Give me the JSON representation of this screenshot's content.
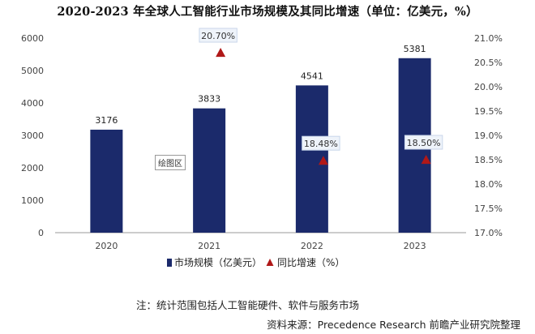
{
  "title": "2020-2023 年全球人工智能行业市场规模及其同比增速（单位：亿美元，%）",
  "plot_area_label": "绘图区",
  "note": "注：统计范围包括人工智能硬件、软件与服务市场",
  "source": "资料来源：Precedence Research 前瞻产业研究院整理",
  "colors": {
    "bar": "#1b2a6b",
    "marker": "#b01818",
    "axis": "#9a9a9a"
  },
  "chart_data": {
    "type": "bar",
    "categories": [
      "2020",
      "2021",
      "2022",
      "2023"
    ],
    "series": [
      {
        "name": "市场规模（亿美元）",
        "axis": "left",
        "type": "bar",
        "values": [
          3176,
          3833,
          4541,
          5381
        ],
        "labels": [
          "3176",
          "3833",
          "4541",
          "5381"
        ]
      },
      {
        "name": "同比增速（%）",
        "axis": "right",
        "type": "scatter",
        "marker": "triangle",
        "values": [
          null,
          20.7,
          18.48,
          18.5
        ],
        "labels": [
          null,
          "20.70%",
          "18.48%",
          "18.50%"
        ]
      }
    ],
    "left_axis": {
      "min": 0,
      "max": 6000,
      "step": 1000,
      "ticks": [
        "0",
        "1000",
        "2000",
        "3000",
        "4000",
        "5000",
        "6000"
      ]
    },
    "right_axis": {
      "min": 17.0,
      "max": 21.0,
      "step": 0.5,
      "ticks": [
        "17.0%",
        "17.5%",
        "18.0%",
        "18.5%",
        "19.0%",
        "19.5%",
        "20.0%",
        "20.5%",
        "21.0%"
      ]
    },
    "legend_position": "bottom",
    "grid": false
  }
}
